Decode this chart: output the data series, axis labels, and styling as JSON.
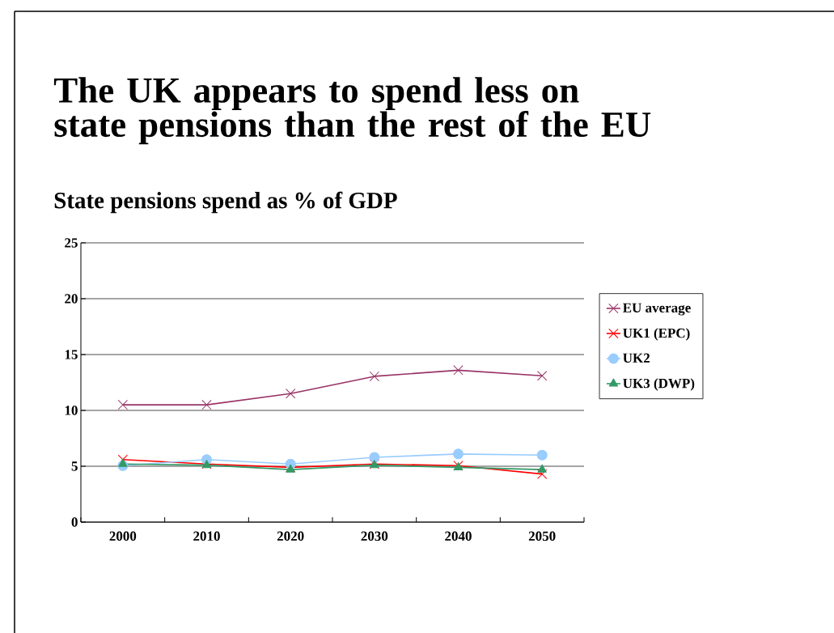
{
  "chart_data": {
    "type": "line",
    "title": "The UK appears to spend less on state pensions than the rest of the EU",
    "subtitle": "State pensions spend as % of GDP",
    "categories": [
      "2000",
      "2010",
      "2020",
      "2030",
      "2040",
      "2050"
    ],
    "series": [
      {
        "name": "EU average",
        "color": "#993366",
        "marker": "cross",
        "values": [
          10.5,
          10.5,
          11.5,
          13.05,
          13.6,
          13.1
        ]
      },
      {
        "name": "UK1 (EPC)",
        "color": "#ff0000",
        "marker": "cross",
        "values": [
          5.6,
          5.2,
          4.9,
          5.2,
          5.05,
          4.3
        ]
      },
      {
        "name": "UK2",
        "color": "#99ccff",
        "marker": "circle",
        "values": [
          5.05,
          5.6,
          5.2,
          5.8,
          6.1,
          6.0
        ]
      },
      {
        "name": "UK3 (DWP)",
        "color": "#339966",
        "marker": "triangle",
        "values": [
          5.2,
          5.1,
          4.7,
          5.1,
          4.9,
          4.7
        ]
      }
    ],
    "ylim": [
      0,
      25
    ],
    "yticks": [
      0,
      5,
      10,
      15,
      20,
      25
    ],
    "grid": "y",
    "legend": "right",
    "line_style": "solid"
  }
}
